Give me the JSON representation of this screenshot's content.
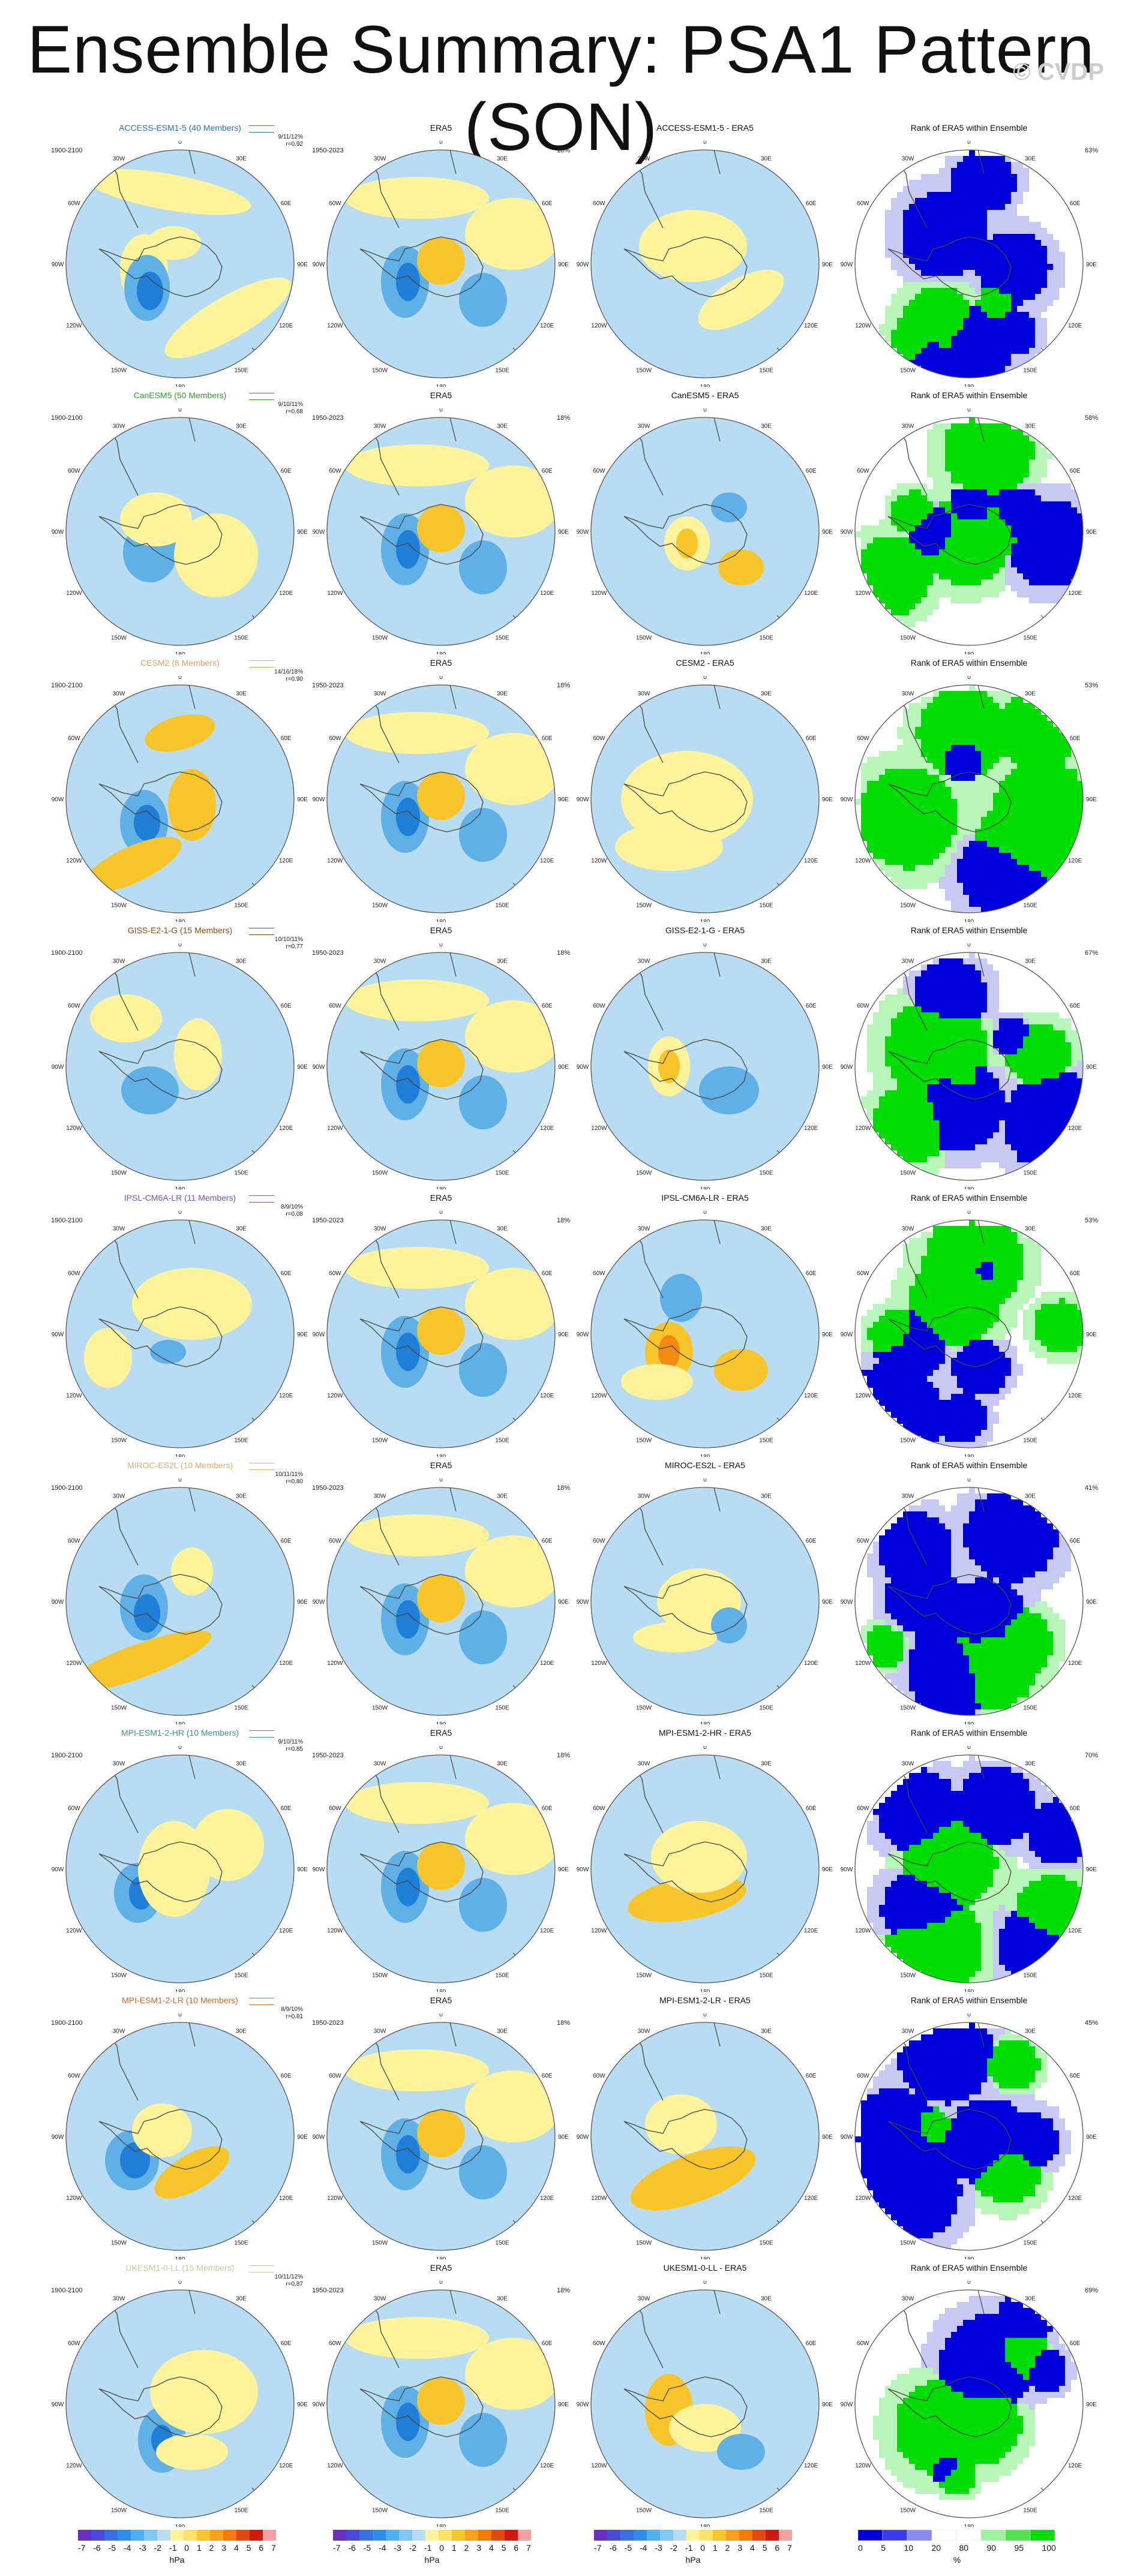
{
  "title": "Ensemble Summary: PSA1 Pattern (SON)",
  "watermark": "© CVDP",
  "periods": {
    "model": "1900-2100",
    "obs": "1950-2023"
  },
  "column_headers": {
    "obs": "ERA5",
    "rank": "Rank of ERA5 within Ensemble"
  },
  "rows": [
    {
      "model": "ACCESS-ESM1-5 (40 Members)",
      "diff": "ACCESS-ESM1-5 - ERA5",
      "color": "#1f77b4",
      "stats": [
        "9/11/12%",
        "r=0.92"
      ],
      "obs_pct": "18%",
      "rank_pct": "63%"
    },
    {
      "model": "CanESM5 (50 Members)",
      "diff": "CanESM5 - ERA5",
      "color": "#2ca02c",
      "stats": [
        "9/10/11%",
        "r=0.68"
      ],
      "obs_pct": "18%",
      "rank_pct": "58%"
    },
    {
      "model": "CESM2 (8 Members)",
      "diff": "CESM2 - ERA5",
      "color": "#e0a060",
      "stats": [
        "14/16/18%",
        "r=0.90"
      ],
      "obs_pct": "18%",
      "rank_pct": "53%"
    },
    {
      "model": "GISS-E2-1-G (15 Members)",
      "diff": "GISS-E2-1-G - ERA5",
      "color": "#8c4a12",
      "stats": [
        "10/10/11%",
        "r=0.77"
      ],
      "obs_pct": "18%",
      "rank_pct": "67%"
    },
    {
      "model": "IPSL-CM6A-LR (11 Members)",
      "diff": "IPSL-CM6A-LR - ERA5",
      "color": "#7b4fc0",
      "stats": [
        "8/9/10%",
        "r=0.08"
      ],
      "obs_pct": "18%",
      "rank_pct": "53%"
    },
    {
      "model": "MIROC-ES2L (10 Members)",
      "diff": "MIROC-ES2L - ERA5",
      "color": "#e8a860",
      "stats": [
        "10/11/11%",
        "r=0.80"
      ],
      "obs_pct": "18%",
      "rank_pct": "41%"
    },
    {
      "model": "MPI-ESM1-2-HR (10 Members)",
      "diff": "MPI-ESM1-2-HR - ERA5",
      "color": "#3a8f8f",
      "stats": [
        "9/10/11%",
        "r=0.85"
      ],
      "obs_pct": "18%",
      "rank_pct": "70%"
    },
    {
      "model": "MPI-ESM1-2-LR (10 Members)",
      "diff": "MPI-ESM1-2-LR - ERA5",
      "color": "#d2691e",
      "stats": [
        "8/9/10%",
        "r=0.81"
      ],
      "obs_pct": "18%",
      "rank_pct": "45%"
    },
    {
      "model": "UKESM1-0-LL (15 Members)",
      "diff": "UKESM1-0-LL - ERA5",
      "color": "#c8c8a0",
      "stats": [
        "10/11/12%",
        "r=0.87"
      ],
      "obs_pct": "18%",
      "rank_pct": "69%"
    }
  ],
  "lon_labels": [
    "0",
    "30E",
    "60E",
    "90E",
    "120E",
    "150E",
    "180",
    "150W",
    "120W",
    "90W",
    "60W",
    "30W"
  ],
  "colorbar": {
    "ticks": [
      "-7",
      "-6",
      "-5",
      "-4",
      "-3",
      "-2",
      "-1",
      "0",
      "1",
      "2",
      "3",
      "4",
      "5",
      "6",
      "7"
    ],
    "units": "hPa"
  },
  "rank_colorbar": {
    "ticks": [
      "0",
      "5",
      "10",
      "20",
      "80",
      "90",
      "95",
      "100"
    ],
    "units": "%"
  },
  "colors": {
    "land_outline": "#444444",
    "pos_light": "#fdf39a",
    "pos_mid": "#f7c52a",
    "pos_strong": "#f08a10",
    "neg_light": "#b8dcf2",
    "neg_mid": "#5fb0e6",
    "neg_strong": "#1f7fd6",
    "rank_high": "#00dd00",
    "rank_low": "#0000dd"
  }
}
